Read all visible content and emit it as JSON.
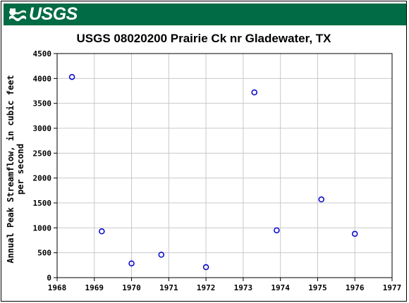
{
  "header": {
    "logo_text": "USGS",
    "banner_color": "#006b44"
  },
  "chart_data": {
    "type": "scatter",
    "title": "USGS 08020200 Prairie Ck nr Gladewater, TX",
    "ylabel_line1": "Annual Peak Streamflow, in cubic feet",
    "ylabel_line2": "per second",
    "xlim": [
      1968,
      1977
    ],
    "ylim": [
      0,
      4500
    ],
    "x_ticks": [
      1968,
      1969,
      1970,
      1971,
      1972,
      1973,
      1974,
      1975,
      1976,
      1977
    ],
    "y_ticks": [
      0,
      500,
      1000,
      1500,
      2000,
      2500,
      3000,
      3500,
      4000,
      4500
    ],
    "grid": true,
    "marker_color": "#0000cc",
    "points": [
      {
        "x": 1968.4,
        "y": 4030
      },
      {
        "x": 1969.2,
        "y": 930
      },
      {
        "x": 1970.0,
        "y": 285
      },
      {
        "x": 1970.8,
        "y": 460
      },
      {
        "x": 1972.0,
        "y": 210
      },
      {
        "x": 1973.3,
        "y": 3720
      },
      {
        "x": 1973.9,
        "y": 950
      },
      {
        "x": 1975.1,
        "y": 1570
      },
      {
        "x": 1976.0,
        "y": 880
      }
    ]
  }
}
